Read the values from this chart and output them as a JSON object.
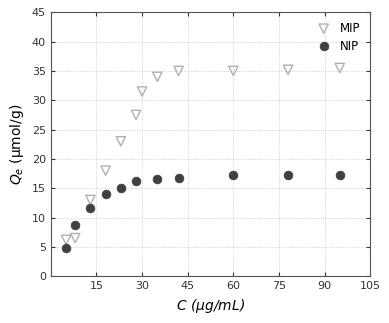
{
  "mip_x": [
    5,
    8,
    13,
    18,
    23,
    28,
    30,
    35,
    42,
    60,
    78,
    95
  ],
  "mip_y": [
    6.2,
    6.5,
    13.0,
    18.0,
    23.0,
    27.5,
    31.5,
    34.0,
    35.0,
    35.0,
    35.2,
    35.5
  ],
  "nip_x": [
    5,
    8,
    13,
    18,
    23,
    28,
    35,
    42,
    60,
    78,
    95
  ],
  "nip_y": [
    4.9,
    8.7,
    11.7,
    14.0,
    15.0,
    16.2,
    16.5,
    16.7,
    17.2,
    17.2,
    17.2
  ],
  "xlabel": "$C$ (μg/mL)",
  "ylabel": "$Q_{e}$ (μmol/g)",
  "xlim": [
    0,
    105
  ],
  "ylim": [
    0,
    45
  ],
  "xticks": [
    0,
    15,
    30,
    45,
    60,
    75,
    90,
    105
  ],
  "yticks": [
    0,
    5,
    10,
    15,
    20,
    25,
    30,
    35,
    40,
    45
  ],
  "legend_mip": "MIP",
  "legend_nip": "NIP",
  "mip_color": "#b0b0b0",
  "nip_color": "#404040",
  "background": "#ffffff",
  "grid_color": "#aaaaaa",
  "figsize": [
    3.89,
    3.23
  ],
  "dpi": 100
}
